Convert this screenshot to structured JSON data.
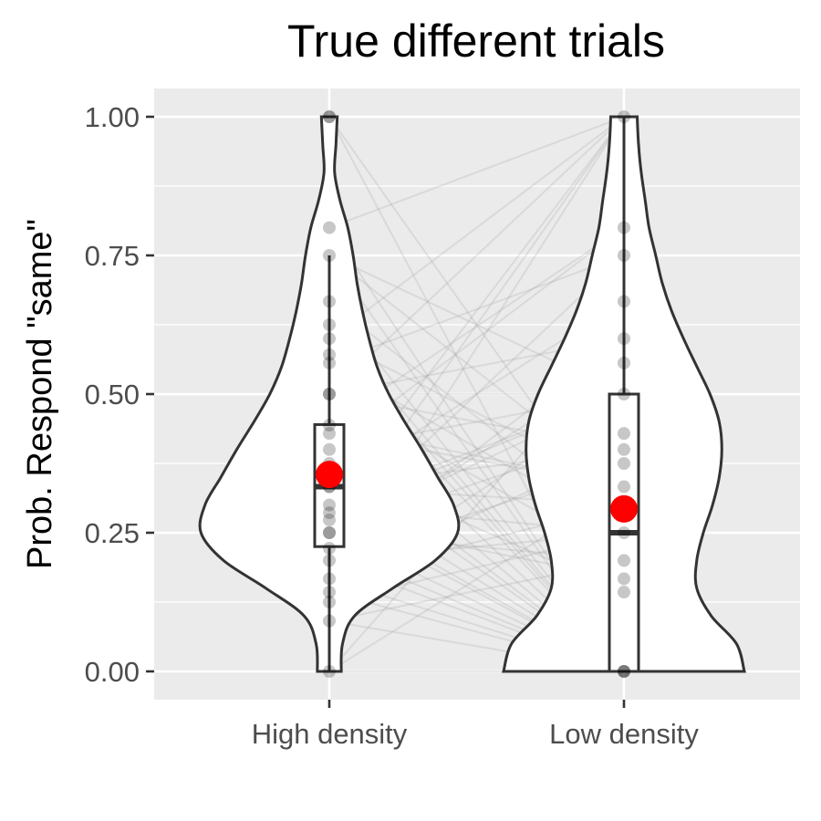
{
  "chart_data": {
    "type": "violin",
    "title": "True different trials",
    "xlabel": "",
    "ylabel": "Prob. Respond \"same\"",
    "ylim": [
      -0.05,
      1.05
    ],
    "y_ticks": [
      "0.00",
      "0.25",
      "0.50",
      "0.75",
      "1.00"
    ],
    "y_tick_values": [
      0,
      0.25,
      0.5,
      0.75,
      1.0
    ],
    "categories": [
      "High density",
      "Low density"
    ],
    "grid": true,
    "colors": {
      "panel": "#ebebeb",
      "grid": "#ffffff",
      "outline": "#333333",
      "mean_point": "#ff0000",
      "subject_point": "#000000",
      "subject_line": "#999999"
    },
    "groups": [
      {
        "name": "High density",
        "mean": 0.355,
        "box": {
          "lower_whisker": 0.0,
          "q1": 0.225,
          "median": 0.333,
          "q3": 0.445,
          "upper_whisker": 0.75
        },
        "density": [
          [
            0.0,
            0.09
          ],
          [
            0.05,
            0.1
          ],
          [
            0.1,
            0.19
          ],
          [
            0.15,
            0.48
          ],
          [
            0.2,
            0.8
          ],
          [
            0.25,
            0.97
          ],
          [
            0.3,
            0.94
          ],
          [
            0.35,
            0.82
          ],
          [
            0.4,
            0.7
          ],
          [
            0.45,
            0.57
          ],
          [
            0.5,
            0.45
          ],
          [
            0.55,
            0.36
          ],
          [
            0.6,
            0.3
          ],
          [
            0.65,
            0.25
          ],
          [
            0.7,
            0.21
          ],
          [
            0.75,
            0.18
          ],
          [
            0.8,
            0.14
          ],
          [
            0.85,
            0.08
          ],
          [
            0.9,
            0.04
          ],
          [
            0.95,
            0.05
          ],
          [
            1.0,
            0.06
          ]
        ],
        "points": [
          1.0,
          1.0,
          0.8,
          0.75,
          0.667,
          0.625,
          0.6,
          0.571,
          0.556,
          0.5,
          0.5,
          0.444,
          0.429,
          0.4,
          0.375,
          0.333,
          0.333,
          0.3,
          0.286,
          0.273,
          0.25,
          0.25,
          0.222,
          0.2,
          0.167,
          0.143,
          0.125,
          0.091,
          0.0
        ]
      },
      {
        "name": "Low density",
        "mean": 0.293,
        "box": {
          "lower_whisker": 0.0,
          "q1": 0.0,
          "median": 0.25,
          "q3": 0.5,
          "upper_whisker": 1.0
        },
        "density": [
          [
            0.0,
            0.91
          ],
          [
            0.05,
            0.85
          ],
          [
            0.1,
            0.66
          ],
          [
            0.15,
            0.55
          ],
          [
            0.2,
            0.55
          ],
          [
            0.25,
            0.6
          ],
          [
            0.3,
            0.67
          ],
          [
            0.35,
            0.72
          ],
          [
            0.4,
            0.74
          ],
          [
            0.45,
            0.72
          ],
          [
            0.5,
            0.65
          ],
          [
            0.55,
            0.55
          ],
          [
            0.6,
            0.45
          ],
          [
            0.65,
            0.36
          ],
          [
            0.7,
            0.29
          ],
          [
            0.75,
            0.24
          ],
          [
            0.8,
            0.19
          ],
          [
            0.85,
            0.16
          ],
          [
            0.9,
            0.13
          ],
          [
            0.95,
            0.11
          ],
          [
            1.0,
            0.1
          ]
        ],
        "points": [
          1.0,
          0.8,
          0.75,
          0.667,
          0.6,
          0.556,
          0.5,
          0.429,
          0.4,
          0.375,
          0.333,
          0.3,
          0.25,
          0.2,
          0.167,
          0.143,
          0.0,
          0.0,
          0.0
        ]
      }
    ],
    "paired_lines": [
      [
        1.0,
        0.0
      ],
      [
        1.0,
        0.25
      ],
      [
        0.8,
        0.0
      ],
      [
        0.8,
        1.0
      ],
      [
        0.75,
        0.0
      ],
      [
        0.75,
        0.5
      ],
      [
        0.667,
        0.25
      ],
      [
        0.625,
        0.0
      ],
      [
        0.6,
        1.0
      ],
      [
        0.6,
        0.333
      ],
      [
        0.571,
        0.0
      ],
      [
        0.556,
        0.75
      ],
      [
        0.5,
        0.0
      ],
      [
        0.5,
        0.6
      ],
      [
        0.5,
        0.2
      ],
      [
        0.5,
        1.0
      ],
      [
        0.444,
        0.0
      ],
      [
        0.444,
        0.8
      ],
      [
        0.429,
        0.333
      ],
      [
        0.4,
        0.0
      ],
      [
        0.4,
        0.5
      ],
      [
        0.375,
        0.143
      ],
      [
        0.333,
        0.0
      ],
      [
        0.333,
        0.4
      ],
      [
        0.333,
        0.667
      ],
      [
        0.3,
        0.0
      ],
      [
        0.3,
        0.25
      ],
      [
        0.3,
        1.0
      ],
      [
        0.286,
        0.0
      ],
      [
        0.286,
        0.5
      ],
      [
        0.273,
        0.167
      ],
      [
        0.25,
        0.0
      ],
      [
        0.25,
        0.429
      ],
      [
        0.25,
        0.75
      ],
      [
        0.25,
        1.0
      ],
      [
        0.222,
        0.0
      ],
      [
        0.222,
        0.556
      ],
      [
        0.2,
        0.0
      ],
      [
        0.2,
        0.375
      ],
      [
        0.167,
        0.0
      ],
      [
        0.167,
        0.3
      ],
      [
        0.167,
        1.0
      ],
      [
        0.143,
        0.0
      ],
      [
        0.143,
        0.5
      ],
      [
        0.125,
        0.25
      ],
      [
        0.091,
        0.0
      ],
      [
        0.091,
        0.2
      ],
      [
        0.0,
        0.333
      ],
      [
        0.0,
        0.0
      ],
      [
        0.0,
        0.6
      ],
      [
        0.5,
        0.4
      ],
      [
        0.333,
        0.3
      ],
      [
        0.25,
        0.5
      ],
      [
        0.2,
        0.6
      ],
      [
        0.556,
        0.25
      ],
      [
        0.6,
        0.0
      ],
      [
        0.667,
        0.0
      ],
      [
        0.4,
        0.8
      ],
      [
        0.3,
        0.5
      ],
      [
        0.2,
        0.25
      ],
      [
        0.444,
        0.333
      ],
      [
        0.375,
        0.0
      ],
      [
        0.5,
        0.5
      ],
      [
        0.25,
        0.2
      ],
      [
        0.167,
        0.4
      ],
      [
        0.75,
        0.333
      ]
    ]
  }
}
